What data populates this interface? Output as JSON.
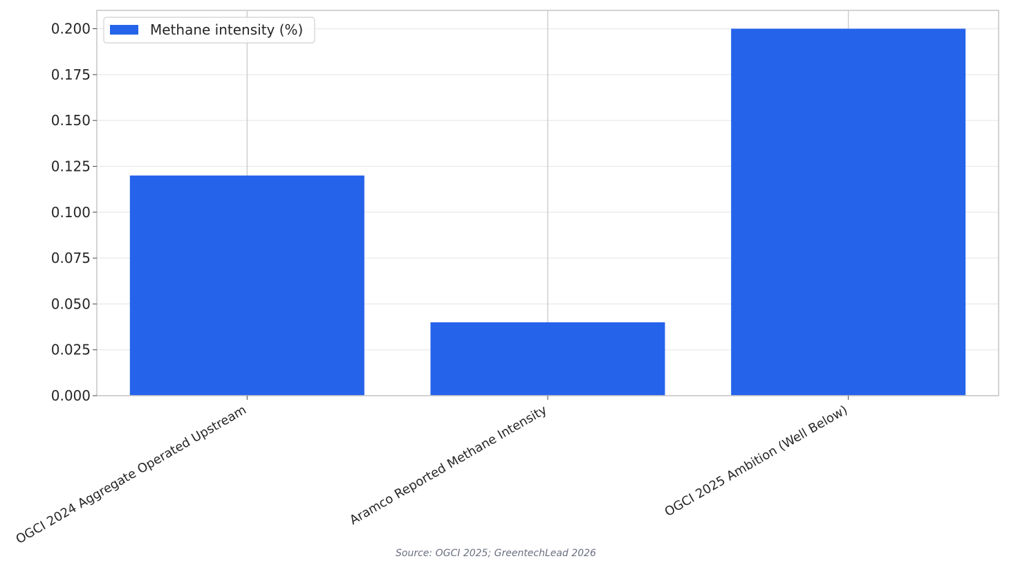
{
  "chart_data": {
    "type": "bar",
    "categories": [
      "OGCI 2024 Aggregate Operated Upstream",
      "Aramco Reported Methane Intensity",
      "OGCI 2025 Ambition (Well Below)"
    ],
    "series": [
      {
        "name": "Methane intensity (%)",
        "values": [
          0.12,
          0.04,
          0.2
        ],
        "color": "#2563eb"
      }
    ],
    "title": "",
    "xlabel": "",
    "ylabel": "",
    "ylim": [
      0,
      0.21
    ],
    "yticks": [
      "0.000",
      "0.025",
      "0.050",
      "0.075",
      "0.100",
      "0.125",
      "0.150",
      "0.175",
      "0.200"
    ],
    "grid": true,
    "legend_position": "top-left"
  },
  "source": "Source: OGCI 2025; GreentechLead 2026"
}
